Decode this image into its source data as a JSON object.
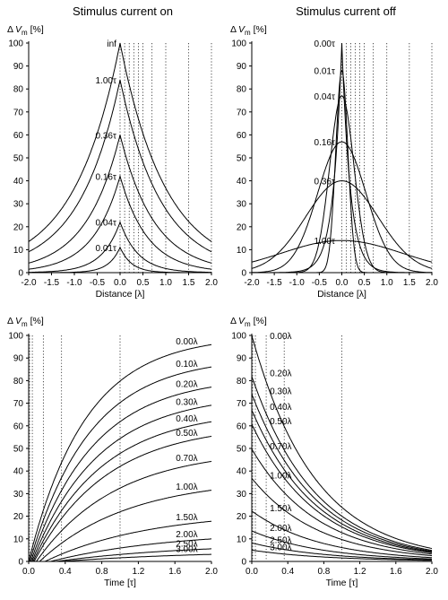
{
  "chart_data": [
    {
      "type": "line",
      "title": "Stimulus current on",
      "ylabel": "ΔV_m [%]",
      "ylabel_parts": {
        "delta": "Δ",
        "V": "V",
        "sub": "m",
        "unit": " [%]"
      },
      "xlabel": "Distance [λ]",
      "xlim": [
        -2.0,
        2.0
      ],
      "ylim": [
        0,
        100
      ],
      "x_ticks": [
        "-2.0",
        "-1.5",
        "-1.0",
        "-0.5",
        "0.0",
        "0.5",
        "1.0",
        "1.5",
        "2.0"
      ],
      "y_ticks": [
        "0",
        "10",
        "20",
        "30",
        "40",
        "50",
        "60",
        "70",
        "80",
        "90",
        "100"
      ],
      "vertical_dotted_lines_x": [
        0,
        0.1,
        0.2,
        0.3,
        0.4,
        0.5,
        0.7,
        1.0,
        1.5,
        2.0
      ],
      "series": [
        {
          "label": "inf",
          "peak": 100,
          "width": 1.0
        },
        {
          "label": "1.00τ",
          "peak": 84,
          "width": 0.9
        },
        {
          "label": "0.36τ",
          "peak": 60,
          "width": 0.75
        },
        {
          "label": "0.16τ",
          "peak": 42,
          "width": 0.6
        },
        {
          "label": "0.04τ",
          "peak": 22,
          "width": 0.4
        },
        {
          "label": "0.01τ",
          "peak": 11,
          "width": 0.25
        }
      ]
    },
    {
      "type": "line",
      "title": "Stimulus current off",
      "ylabel": "ΔV_m [%]",
      "ylabel_parts": {
        "delta": "Δ",
        "V": "V",
        "sub": "m",
        "unit": " [%]"
      },
      "xlabel": "Distance [λ]",
      "xlim": [
        -2.0,
        2.0
      ],
      "ylim": [
        0,
        100
      ],
      "x_ticks": [
        "-2.0",
        "-1.5",
        "-1.0",
        "-0.5",
        "0.0",
        "0.5",
        "1.0",
        "1.5",
        "2.0"
      ],
      "y_ticks": [
        "0",
        "10",
        "20",
        "30",
        "40",
        "50",
        "60",
        "70",
        "80",
        "90",
        "100"
      ],
      "vertical_dotted_lines_x": [
        0,
        0.1,
        0.2,
        0.3,
        0.4,
        0.5,
        0.7,
        1.0,
        1.5,
        2.0
      ],
      "series": [
        {
          "label": "0.00τ",
          "peak": 100,
          "spread": 0
        },
        {
          "label": "0.01τ",
          "peak": 88,
          "spread": 0.2
        },
        {
          "label": "0.04τ",
          "peak": 77,
          "spread": 0.4
        },
        {
          "label": "0.16τ",
          "peak": 57,
          "spread": 0.8
        },
        {
          "label": "0.36τ",
          "peak": 40,
          "spread": 1.2
        },
        {
          "label": "1.00τ",
          "peak": 14,
          "spread": 2.0
        }
      ]
    },
    {
      "type": "line",
      "ylabel": "ΔV_m [%]",
      "ylabel_parts": {
        "delta": "Δ",
        "V": "V",
        "sub": "m",
        "unit": " [%]"
      },
      "xlabel": "Time [τ]",
      "xlim": [
        0.0,
        2.0
      ],
      "ylim": [
        0,
        100
      ],
      "x_ticks": [
        "0.0",
        "0.4",
        "0.8",
        "1.2",
        "1.6",
        "2.0"
      ],
      "y_ticks": [
        "0",
        "10",
        "20",
        "30",
        "40",
        "50",
        "60",
        "70",
        "80",
        "90",
        "100"
      ],
      "vertical_dotted_lines_x": [
        0.01,
        0.04,
        0.16,
        0.36,
        1.0
      ],
      "series": [
        {
          "label": "0.00λ",
          "distance": 0.0,
          "final": 100
        },
        {
          "label": "0.10λ",
          "distance": 0.1,
          "final": 90.5
        },
        {
          "label": "0.20λ",
          "distance": 0.2,
          "final": 81.9
        },
        {
          "label": "0.30λ",
          "distance": 0.3,
          "final": 74.1
        },
        {
          "label": "0.40λ",
          "distance": 0.4,
          "final": 67.0
        },
        {
          "label": "0.50λ",
          "distance": 0.5,
          "final": 60.7
        },
        {
          "label": "0.70λ",
          "distance": 0.7,
          "final": 49.7
        },
        {
          "label": "1.00λ",
          "distance": 1.0,
          "final": 36.8
        },
        {
          "label": "1.50λ",
          "distance": 1.5,
          "final": 22.3
        },
        {
          "label": "2.00λ",
          "distance": 2.0,
          "final": 13.5
        },
        {
          "label": "2.50λ",
          "distance": 2.5,
          "final": 8.2
        },
        {
          "label": "3.00λ",
          "distance": 3.0,
          "final": 5.0
        }
      ]
    },
    {
      "type": "line",
      "ylabel": "ΔV_m [%]",
      "ylabel_parts": {
        "delta": "Δ",
        "V": "V",
        "sub": "m",
        "unit": " [%]"
      },
      "xlabel": "Time [τ]",
      "xlim": [
        0.0,
        2.0
      ],
      "ylim": [
        0,
        100
      ],
      "x_ticks": [
        "0.0",
        "0.4",
        "0.8",
        "1.2",
        "1.6",
        "2.0"
      ],
      "y_ticks": [
        "0",
        "10",
        "20",
        "30",
        "40",
        "50",
        "60",
        "70",
        "80",
        "90",
        "100"
      ],
      "vertical_dotted_lines_x": [
        0.01,
        0.04,
        0.16,
        0.36,
        1.0
      ],
      "series": [
        {
          "label": "0.00λ",
          "distance": 0.0,
          "start": 100
        },
        {
          "label": "0.20λ",
          "distance": 0.2,
          "start": 81.9
        },
        {
          "label": "0.30λ",
          "distance": 0.3,
          "start": 74.1
        },
        {
          "label": "0.40λ",
          "distance": 0.4,
          "start": 67.0
        },
        {
          "label": "0.50λ",
          "distance": 0.5,
          "start": 60.7
        },
        {
          "label": "0.70λ",
          "distance": 0.7,
          "start": 49.7
        },
        {
          "label": "1.00λ",
          "distance": 1.0,
          "start": 36.8
        },
        {
          "label": "1.50λ",
          "distance": 1.5,
          "start": 22.3
        },
        {
          "label": "2.00λ",
          "distance": 2.0,
          "start": 13.5
        },
        {
          "label": "2.50λ",
          "distance": 2.5,
          "start": 8.2
        },
        {
          "label": "3.00λ",
          "distance": 3.0,
          "start": 5.0
        }
      ]
    }
  ]
}
